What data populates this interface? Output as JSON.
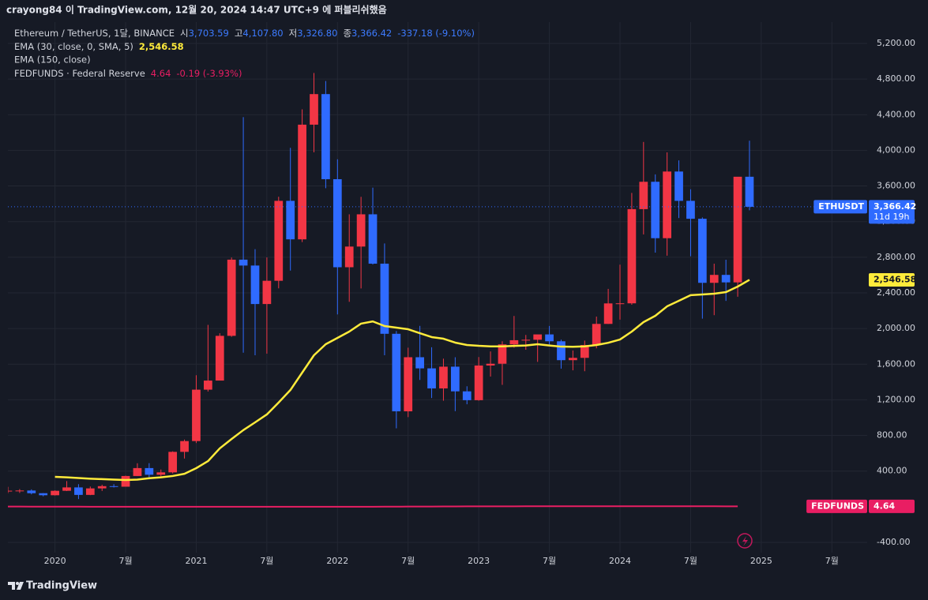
{
  "header": "crayong84 이 TradingView.com, 12월 20, 2024 14:47 UTC+9 에 퍼블리쉬했음",
  "footer": "TradingView",
  "chart_data": {
    "type": "candlestick",
    "symbol_title": "Ethereum / TetherUS, 1달, BINANCE",
    "ohlc": [
      {
        "label": "시",
        "value": "3,703.59"
      },
      {
        "label": "고",
        "value": "4,107.80"
      },
      {
        "label": "저",
        "value": "3,326.80"
      },
      {
        "label": "종",
        "value": "3,366.42"
      }
    ],
    "change": "-337.18 (-9.10%)",
    "extra_legend": "EMA (150, close)",
    "x": [
      "2019-09",
      "2019-10",
      "2019-11",
      "2019-12",
      "2020-01",
      "2020-02",
      "2020-03",
      "2020-04",
      "2020-05",
      "2020-06",
      "2020-07",
      "2020-08",
      "2020-09",
      "2020-10",
      "2020-11",
      "2020-12",
      "2021-01",
      "2021-02",
      "2021-03",
      "2021-04",
      "2021-05",
      "2021-06",
      "2021-07",
      "2021-08",
      "2021-09",
      "2021-10",
      "2021-11",
      "2021-12",
      "2022-01",
      "2022-02",
      "2022-03",
      "2022-04",
      "2022-05",
      "2022-06",
      "2022-07",
      "2022-08",
      "2022-09",
      "2022-10",
      "2022-11",
      "2022-12",
      "2023-01",
      "2023-02",
      "2023-03",
      "2023-04",
      "2023-05",
      "2023-06",
      "2023-07",
      "2023-08",
      "2023-09",
      "2023-10",
      "2023-11",
      "2023-12",
      "2024-01",
      "2024-02",
      "2024-03",
      "2024-04",
      "2024-05",
      "2024-06",
      "2024-07",
      "2024-08",
      "2024-09",
      "2024-10",
      "2024-11",
      "2024-12"
    ],
    "xlim": [
      "2019-09",
      "2025-10"
    ],
    "xticks": [
      {
        "value": "2020-01",
        "label": "2020"
      },
      {
        "value": "2020-07",
        "label": "7월"
      },
      {
        "value": "2021-01",
        "label": "2021"
      },
      {
        "value": "2021-07",
        "label": "7월"
      },
      {
        "value": "2022-01",
        "label": "2022"
      },
      {
        "value": "2022-07",
        "label": "7월"
      },
      {
        "value": "2023-01",
        "label": "2023"
      },
      {
        "value": "2023-07",
        "label": "7월"
      },
      {
        "value": "2024-01",
        "label": "2024"
      },
      {
        "value": "2024-07",
        "label": "7월"
      },
      {
        "value": "2025-01",
        "label": "2025"
      },
      {
        "value": "2025-07",
        "label": "7월"
      }
    ],
    "ylim": [
      -515,
      5439
    ],
    "yticks": [
      {
        "value": -400,
        "label": "-400.00"
      },
      {
        "value": 400,
        "label": "400.00"
      },
      {
        "value": 800,
        "label": "800.00"
      },
      {
        "value": 1200,
        "label": "1,200.00"
      },
      {
        "value": 1600,
        "label": "1,600.00"
      },
      {
        "value": 2000,
        "label": "2,000.00"
      },
      {
        "value": 2400,
        "label": "2,400.00"
      },
      {
        "value": 2800,
        "label": "2,800.00"
      },
      {
        "value": 3200,
        "label": "3,200.00"
      },
      {
        "value": 3600,
        "label": "3,600.00"
      },
      {
        "value": 4000,
        "label": "4,000.00"
      },
      {
        "value": 4400,
        "label": "4,400.00"
      },
      {
        "value": 4800,
        "label": "4,800.00"
      },
      {
        "value": 5200,
        "label": "5,200.00"
      }
    ],
    "grid": true,
    "series": [
      {
        "name": "ETHUSDT",
        "name_badge": true,
        "up_color": "#f23645",
        "down_color": "#2f6bff",
        "last_label": "3,366.42",
        "countdown": "11d 19h",
        "open": [
          172,
          180,
          182,
          152,
          129,
          179,
          217,
          133,
          206,
          231,
          225,
          345,
          434,
          359,
          386,
          616,
          737,
          1314,
          1416,
          1918,
          2773,
          2707,
          2275,
          2536,
          3433,
          3001,
          4288,
          4631,
          3676,
          2688,
          2920,
          3282,
          2728,
          1941,
          1071,
          1678,
          1553,
          1328,
          1572,
          1295,
          1196,
          1585,
          1605,
          1822,
          1869,
          1874,
          1934,
          1857,
          1645,
          1671,
          1815,
          2052,
          2282,
          2283,
          3340,
          3647,
          3014,
          3762,
          3433,
          3232,
          2513,
          2602,
          2518,
          3703.59
        ],
        "high": [
          224,
          198,
          195,
          153,
          184,
          288,
          253,
          227,
          247,
          253,
          349,
          488,
          489,
          418,
          622,
          754,
          1476,
          2041,
          1947,
          2797,
          4372,
          2891,
          2798,
          3479,
          4028,
          4460,
          4868,
          4778,
          3900,
          3282,
          3478,
          3581,
          2955,
          1972,
          1785,
          2030,
          1790,
          1662,
          1678,
          1352,
          1680,
          1743,
          1857,
          2141,
          1928,
          1930,
          2029,
          1875,
          1754,
          1865,
          2134,
          2445,
          2717,
          3522,
          4094,
          3730,
          3977,
          3887,
          3563,
          3247,
          2728,
          2772,
          3687,
          4107.8
        ],
        "low": [
          153,
          155,
          139,
          117,
          126,
          176,
          86,
          130,
          177,
          216,
          225,
          344,
          307,
          331,
          374,
          541,
          715,
          1293,
          1438,
          1907,
          1729,
          1700,
          1718,
          2451,
          2650,
          2970,
          3978,
          3575,
          2159,
          2300,
          2450,
          2719,
          1700,
          880,
          1006,
          1423,
          1220,
          1190,
          1073,
          1150,
          1190,
          1461,
          1368,
          1785,
          1762,
          1626,
          1820,
          1550,
          1531,
          1521,
          1778,
          2052,
          2100,
          2267,
          3056,
          2852,
          2817,
          3240,
          2811,
          2111,
          2150,
          2310,
          2357,
          3326.8
        ],
        "close": [
          180,
          182,
          152,
          129,
          179,
          217,
          133,
          206,
          231,
          225,
          345,
          434,
          359,
          386,
          616,
          737,
          1314,
          1416,
          1918,
          2773,
          2707,
          2275,
          2536,
          3433,
          3001,
          4288,
          4631,
          3676,
          2688,
          2920,
          3282,
          2728,
          1941,
          1071,
          1678,
          1553,
          1328,
          1572,
          1295,
          1196,
          1585,
          1605,
          1822,
          1869,
          1874,
          1934,
          1857,
          1645,
          1671,
          1815,
          2052,
          2282,
          2283,
          3340,
          3647,
          3014,
          3762,
          3433,
          3232,
          2513,
          2602,
          2518,
          3703.59,
          3366.42
        ]
      },
      {
        "name": "EMA (30, close, 0, SMA, 5)",
        "type": "line",
        "color": "#ffeb3b",
        "last_label": "2,546.58",
        "values": [
          null,
          null,
          null,
          null,
          336,
          330,
          322,
          315,
          310,
          305,
          300,
          305,
          320,
          330,
          345,
          370,
          433,
          512,
          655,
          760,
          860,
          947,
          1036,
          1170,
          1310,
          1505,
          1700,
          1824,
          1895,
          1966,
          2055,
          2080,
          2028,
          2010,
          1992,
          1948,
          1904,
          1886,
          1842,
          1815,
          1806,
          1800,
          1800,
          1805,
          1810,
          1824,
          1810,
          1797,
          1795,
          1800,
          1815,
          1840,
          1877,
          1966,
          2072,
          2143,
          2249,
          2311,
          2374,
          2382,
          2391,
          2409,
          2471,
          2546.58
        ]
      },
      {
        "name": "FEDFUNDS",
        "legend_name": "FEDFUNDS · Federal Reserve",
        "name_badge": true,
        "type": "line",
        "color": "#e91e63",
        "last_label": "4.64",
        "change": "-0.19 (-3.93%)",
        "values": [
          2.04,
          1.83,
          1.55,
          1.55,
          1.55,
          1.58,
          0.65,
          0.05,
          0.05,
          0.08,
          0.09,
          0.1,
          0.09,
          0.09,
          0.09,
          0.09,
          0.09,
          0.08,
          0.07,
          0.07,
          0.06,
          0.08,
          0.1,
          0.09,
          0.08,
          0.08,
          0.08,
          0.08,
          0.08,
          0.08,
          0.2,
          0.33,
          0.77,
          1.21,
          1.68,
          2.33,
          2.56,
          3.08,
          3.78,
          4.1,
          4.33,
          4.57,
          4.65,
          4.83,
          5.06,
          5.08,
          5.12,
          5.33,
          5.33,
          5.33,
          5.33,
          5.33,
          5.33,
          5.33,
          5.33,
          5.33,
          5.33,
          5.33,
          5.33,
          5.33,
          5.13,
          4.83,
          4.64,
          null
        ]
      }
    ]
  }
}
